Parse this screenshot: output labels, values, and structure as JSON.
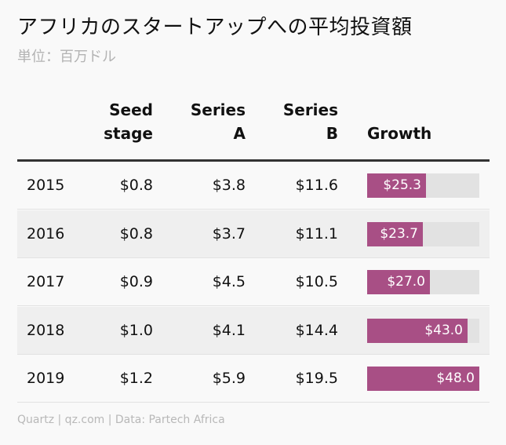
{
  "title": "アフリカのスタートアップへの平均投資額",
  "subtitle": "単位：百万ドル",
  "footer": "Quartz | qz.com | Data: Partech Africa",
  "colors": {
    "bar": "#a84f85",
    "bar_track": "#e2e2e2",
    "alt_row": "#efefef"
  },
  "chart_data": {
    "type": "table",
    "columns": [
      {
        "line1": "",
        "line2": ""
      },
      {
        "line1": "Seed",
        "line2": "stage"
      },
      {
        "line1": "Series",
        "line2": "A"
      },
      {
        "line1": "Series",
        "line2": "B"
      },
      {
        "line1": "",
        "line2": "Growth"
      }
    ],
    "growth_max": 48.0,
    "rows": [
      {
        "year": "2015",
        "seed": "$0.8",
        "series_a": "$3.8",
        "series_b": "$11.6",
        "growth_label": "$25.3",
        "growth": 25.3
      },
      {
        "year": "2016",
        "seed": "$0.8",
        "series_a": "$3.7",
        "series_b": "$11.1",
        "growth_label": "$23.7",
        "growth": 23.7
      },
      {
        "year": "2017",
        "seed": "$0.9",
        "series_a": "$4.5",
        "series_b": "$10.5",
        "growth_label": "$27.0",
        "growth": 27.0
      },
      {
        "year": "2018",
        "seed": "$1.0",
        "series_a": "$4.1",
        "series_b": "$14.4",
        "growth_label": "$43.0",
        "growth": 43.0
      },
      {
        "year": "2019",
        "seed": "$1.2",
        "series_a": "$5.9",
        "series_b": "$19.5",
        "growth_label": "$48.0",
        "growth": 48.0
      }
    ]
  }
}
